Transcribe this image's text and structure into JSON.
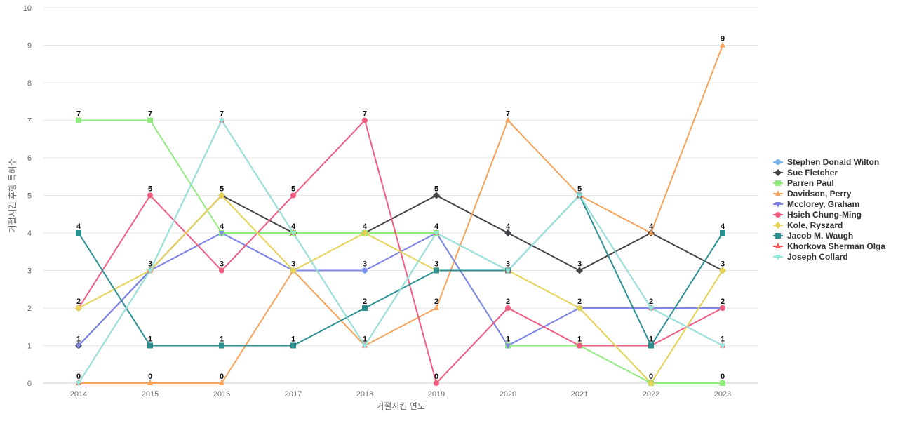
{
  "chart_data": {
    "type": "line",
    "title": "",
    "xlabel": "거절시킨 연도",
    "ylabel": "거절시킨 후행 특허수",
    "ylim": [
      0,
      10
    ],
    "yticks": [
      0,
      1,
      2,
      3,
      4,
      5,
      6,
      7,
      8,
      9,
      10
    ],
    "categories": [
      "2014",
      "2015",
      "2016",
      "2017",
      "2018",
      "2019",
      "2020",
      "2021",
      "2022",
      "2023"
    ],
    "legend_position": "right",
    "series": [
      {
        "name": "Stephen Donald Wilton",
        "color": "#7cb5ec",
        "marker": "circle",
        "values": [
          1,
          3,
          4,
          3,
          3,
          4,
          1,
          2,
          2,
          2
        ]
      },
      {
        "name": "Sue Fletcher",
        "color": "#434348",
        "marker": "diamond",
        "values": [
          1,
          3,
          5,
          4,
          4,
          5,
          4,
          3,
          4,
          3
        ]
      },
      {
        "name": "Parren Paul",
        "color": "#90ed7d",
        "marker": "square",
        "values": [
          7,
          7,
          4,
          4,
          4,
          4,
          1,
          1,
          0,
          0
        ]
      },
      {
        "name": "Davidson, Perry",
        "color": "#f7a35c",
        "marker": "triangle",
        "values": [
          0,
          0,
          0,
          3,
          1,
          2,
          7,
          5,
          4,
          9
        ]
      },
      {
        "name": "Mcclorey, Graham",
        "color": "#8085e9",
        "marker": "triangle-down",
        "values": [
          1,
          3,
          4,
          3,
          3,
          4,
          1,
          2,
          2,
          2
        ]
      },
      {
        "name": "Hsieh Chung-Ming",
        "color": "#f15c80",
        "marker": "circle",
        "values": [
          2,
          5,
          3,
          5,
          7,
          0,
          2,
          1,
          1,
          2
        ]
      },
      {
        "name": "Kole, Ryszard",
        "color": "#e4d354",
        "marker": "diamond",
        "values": [
          2,
          3,
          5,
          3,
          4,
          3,
          3,
          2,
          0,
          3
        ]
      },
      {
        "name": "Jacob M. Waugh",
        "color": "#2b908f",
        "marker": "square",
        "values": [
          4,
          1,
          1,
          1,
          2,
          3,
          3,
          5,
          1,
          4
        ]
      },
      {
        "name": "Khorkova Sherman Olga",
        "color": "#f45b5b",
        "marker": "triangle",
        "values": [
          0,
          3,
          7,
          4,
          1,
          4,
          3,
          5,
          2,
          1
        ]
      },
      {
        "name": "Joseph Collard",
        "color": "#91e8e1",
        "marker": "triangle-down",
        "values": [
          0,
          3,
          7,
          4,
          1,
          4,
          3,
          5,
          2,
          1
        ]
      }
    ],
    "data_labels": [
      {
        "category": "2014",
        "labels": [
          7,
          4,
          2,
          1,
          0
        ]
      },
      {
        "category": "2015",
        "labels": [
          7,
          5,
          3,
          1,
          0
        ]
      },
      {
        "category": "2016",
        "labels": [
          7,
          5,
          4,
          3,
          1,
          0
        ]
      },
      {
        "category": "2017",
        "labels": [
          5,
          4,
          3,
          1
        ]
      },
      {
        "category": "2018",
        "labels": [
          7,
          4,
          3,
          2,
          1
        ]
      },
      {
        "category": "2019",
        "labels": [
          5,
          4,
          3,
          2,
          0
        ]
      },
      {
        "category": "2020",
        "labels": [
          7,
          4,
          3,
          2,
          1
        ]
      },
      {
        "category": "2021",
        "labels": [
          5,
          3,
          2,
          1
        ]
      },
      {
        "category": "2022",
        "labels": [
          4,
          2,
          1,
          0
        ]
      },
      {
        "category": "2023",
        "labels": [
          9,
          4,
          3,
          2,
          1,
          0
        ]
      }
    ]
  }
}
